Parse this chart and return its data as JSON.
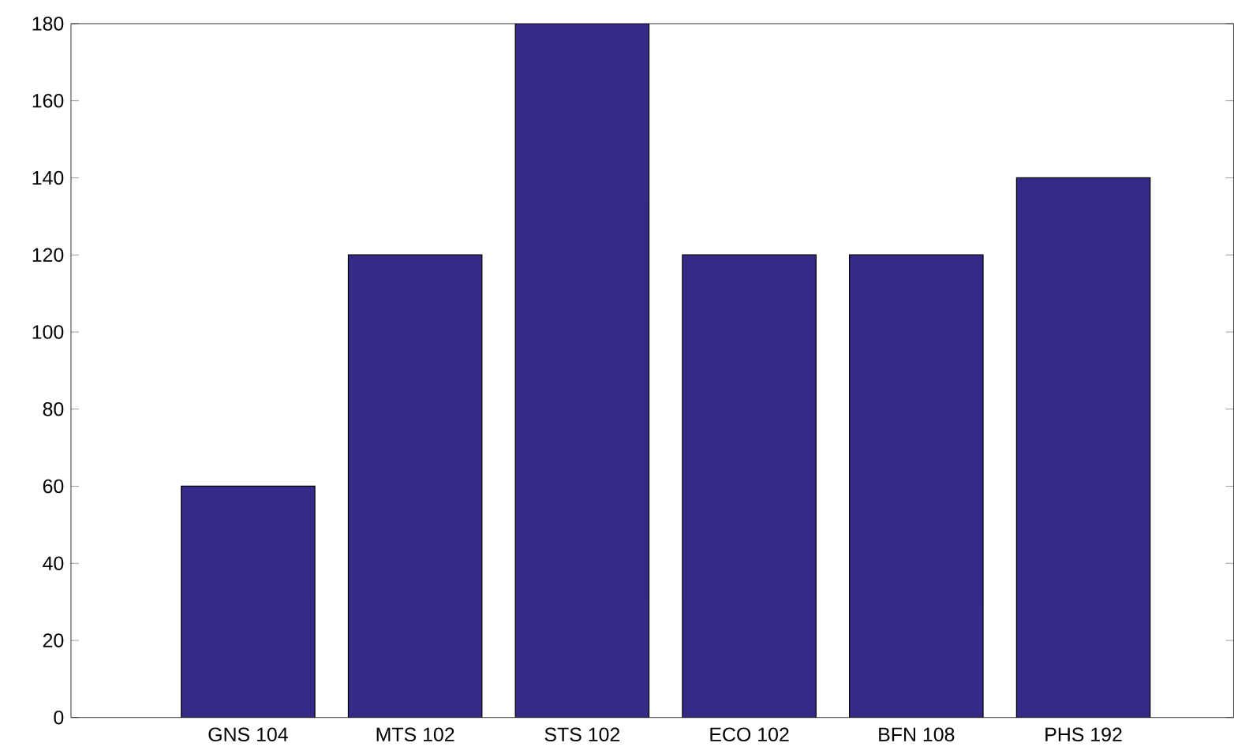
{
  "chart_data": {
    "type": "bar",
    "categories": [
      "GNS 104",
      "MTS 102",
      "STS 102",
      "ECO 102",
      "BFN 108",
      "PHS 192"
    ],
    "values": [
      60,
      120,
      180,
      120,
      120,
      140
    ],
    "color": "#352a87",
    "ylim": [
      0,
      180
    ],
    "yticks": [
      0,
      20,
      40,
      60,
      80,
      100,
      120,
      140,
      160,
      180
    ],
    "grid": false,
    "legend": false
  }
}
